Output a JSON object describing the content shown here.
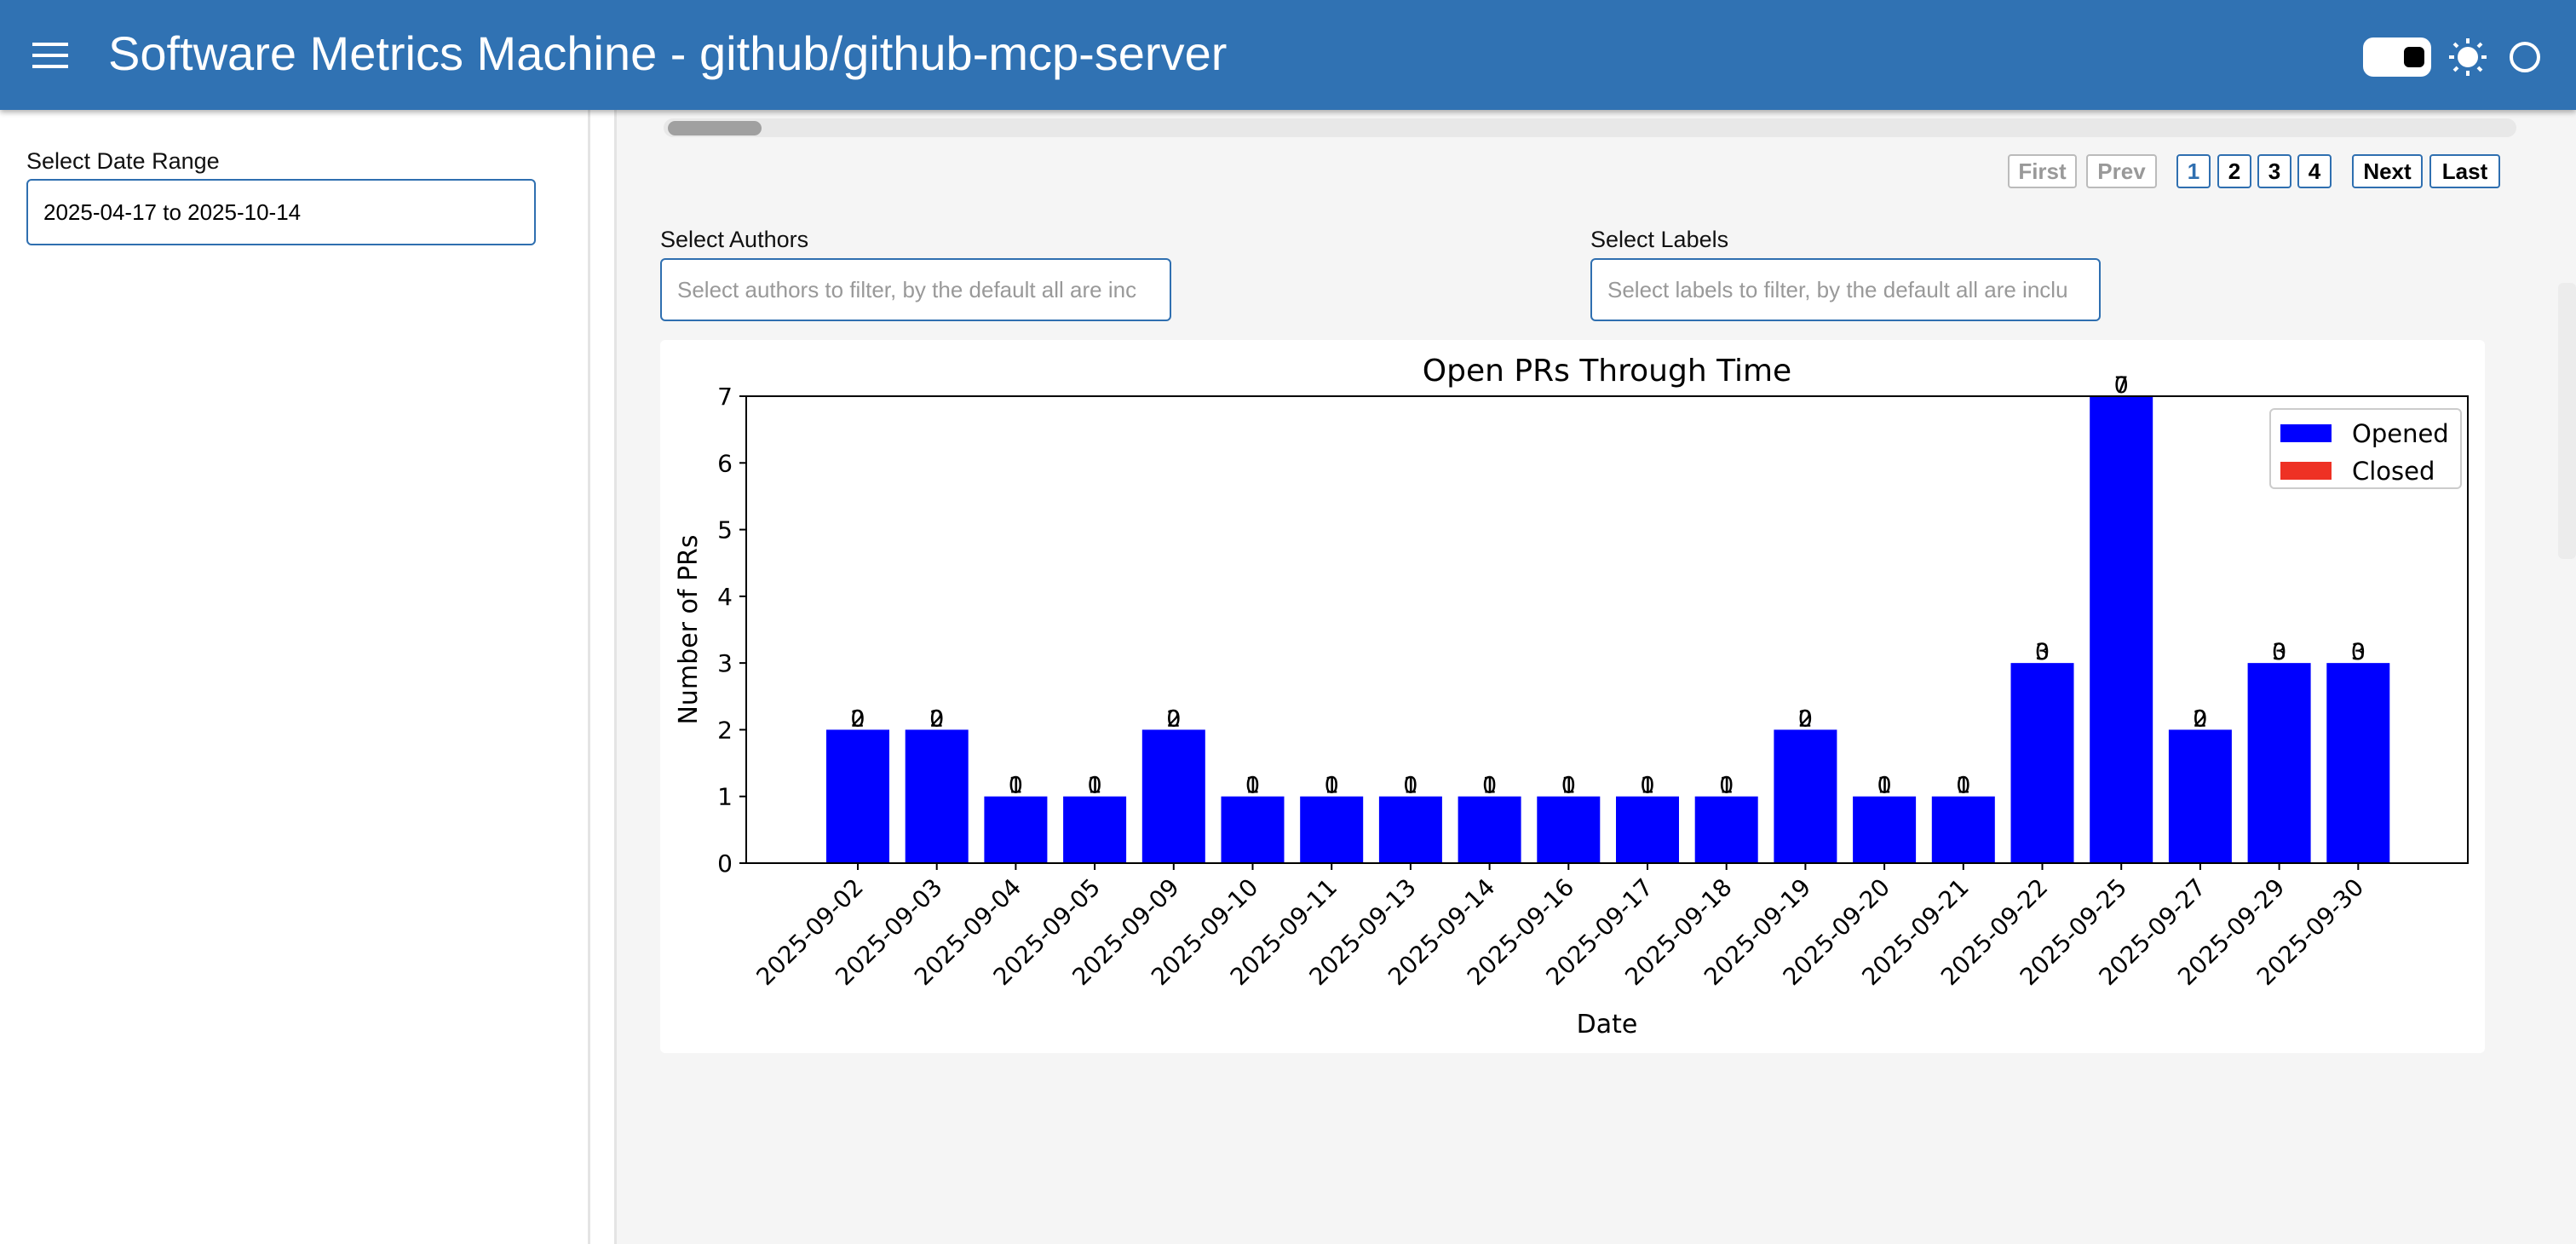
{
  "header": {
    "title": "Software Metrics Machine - github/github-mcp-server"
  },
  "sidebar": {
    "date_range_label": "Select Date Range",
    "date_range_value": "2025-04-17 to 2025-10-14"
  },
  "pagination": [
    "First",
    "Prev",
    "1",
    "2",
    "3",
    "4",
    "Next",
    "Last"
  ],
  "filters": {
    "authors_label": "Select Authors",
    "authors_placeholder": "Select authors to filter, by the default all are inc",
    "labels_label": "Select Labels",
    "labels_placeholder": "Select labels to filter, by the default all are inclu"
  },
  "chart_data": {
    "type": "bar",
    "title": "Open PRs Through Time",
    "x_label": "Date",
    "y_label": "Number of PRs",
    "categories": [
      "2025-09-02",
      "2025-09-03",
      "2025-09-04",
      "2025-09-05",
      "2025-09-09",
      "2025-09-10",
      "2025-09-11",
      "2025-09-13",
      "2025-09-14",
      "2025-09-16",
      "2025-09-17",
      "2025-09-18",
      "2025-09-19",
      "2025-09-20",
      "2025-09-21",
      "2025-09-22",
      "2025-09-25",
      "2025-09-27",
      "2025-09-29",
      "2025-09-30"
    ],
    "series": [
      {
        "name": "Opened",
        "color": "#0000ff",
        "values": [
          2,
          2,
          1,
          1,
          2,
          1,
          1,
          1,
          1,
          1,
          1,
          1,
          2,
          1,
          1,
          3,
          7,
          2,
          3,
          3
        ]
      },
      {
        "name": "Closed",
        "color": "#ee3124",
        "values": [
          0,
          0,
          0,
          0,
          0,
          0,
          0,
          0,
          0,
          0,
          0,
          0,
          0,
          0,
          0,
          0,
          0,
          0,
          0,
          0
        ]
      }
    ],
    "ylim": [
      0,
      7
    ],
    "yticks": [
      0,
      1,
      2,
      3,
      4,
      5,
      6,
      7
    ],
    "legend": "upper right"
  }
}
